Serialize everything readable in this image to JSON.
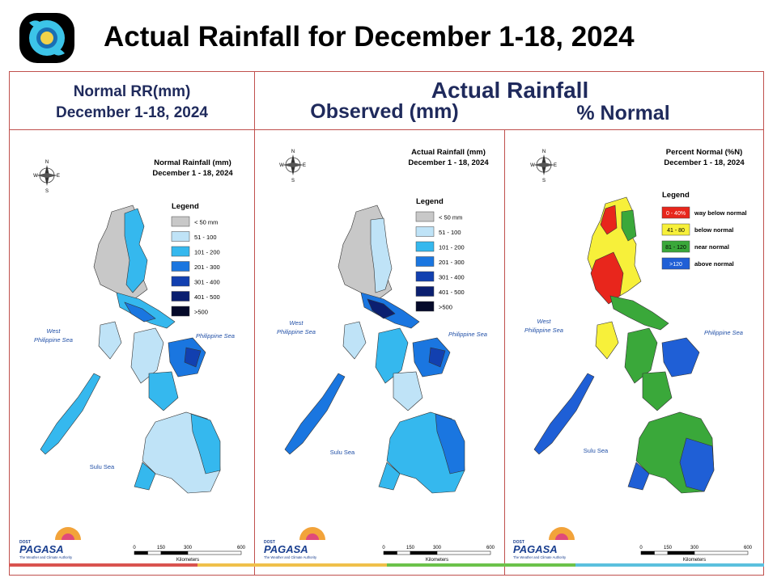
{
  "title": "Actual Rainfall for December 1-18, 2024",
  "header": {
    "normal_line1": "Normal RR(mm)",
    "normal_line2": "December 1-18, 2024",
    "actual_title": "Actual Rainfall",
    "observed_label": "Observed (mm)",
    "percent_label": "% Normal"
  },
  "panels": [
    {
      "map_title": "Normal Rainfall (mm)",
      "map_subtitle": "December 1 - 18, 2024",
      "legend_title": "Legend",
      "legend": [
        {
          "label": "< 50 mm",
          "color": "#c8c8c8"
        },
        {
          "label": "51 - 100",
          "color": "#bfe3f7"
        },
        {
          "label": "101 - 200",
          "color": "#35b8ee"
        },
        {
          "label": "201 - 300",
          "color": "#1a76e0"
        },
        {
          "label": "301 - 400",
          "color": "#1240b0"
        },
        {
          "label": "401 - 500",
          "color": "#0b1f70"
        },
        {
          "label": ">500",
          "color": "#050a2a"
        }
      ],
      "sea_west": [
        "West",
        "Philippine Sea"
      ],
      "sea_east": "Philippine Sea",
      "sea_sulu": "Sulu Sea"
    },
    {
      "map_title": "Actual Rainfall (mm)",
      "map_subtitle": "December 1 - 18, 2024",
      "legend_title": "Legend",
      "legend": [
        {
          "label": "< 50 mm",
          "color": "#c8c8c8"
        },
        {
          "label": "51 - 100",
          "color": "#bfe3f7"
        },
        {
          "label": "101 - 200",
          "color": "#35b8ee"
        },
        {
          "label": "201 - 300",
          "color": "#1a76e0"
        },
        {
          "label": "301 - 400",
          "color": "#1240b0"
        },
        {
          "label": "401 - 500",
          "color": "#0b1f70"
        },
        {
          "label": ">500",
          "color": "#050a2a"
        }
      ],
      "sea_west": [
        "West",
        "Philippine Sea"
      ],
      "sea_east": "Philippine Sea",
      "sea_sulu": "Sulu Sea"
    },
    {
      "map_title": "Percent Normal (%N)",
      "map_subtitle": "December 1 - 18, 2024",
      "legend_title": "Legend",
      "legend": [
        {
          "box": "0 - 40%",
          "label": "way below normal",
          "color": "#e8261c"
        },
        {
          "box": "41 - 80",
          "label": "below normal",
          "color": "#f7f03a"
        },
        {
          "box": "81 - 120",
          "label": "near normal",
          "color": "#3aa83a"
        },
        {
          "box": ">120",
          "label": "above normal",
          "color": "#1f5fd6"
        }
      ],
      "sea_west": [
        "West",
        "Philippine Sea"
      ],
      "sea_east": "Philippine Sea",
      "sea_sulu": "Sulu Sea"
    }
  ],
  "scale": {
    "ticks": [
      "0",
      "150",
      "300",
      "600"
    ],
    "unit": "Kilometers"
  },
  "compass": {
    "n": "N",
    "s": "S",
    "e": "E",
    "w": "W"
  },
  "branding": {
    "name": "PAGASA",
    "tagline": "The Weather and Climate Authority",
    "small": "DOST"
  },
  "colors": {
    "border": "#c0504d",
    "header_text": "#1f2a5c"
  },
  "bottom_strip": [
    "#d9534f",
    "#f0c04a",
    "#6cc24a",
    "#5bc0de"
  ]
}
